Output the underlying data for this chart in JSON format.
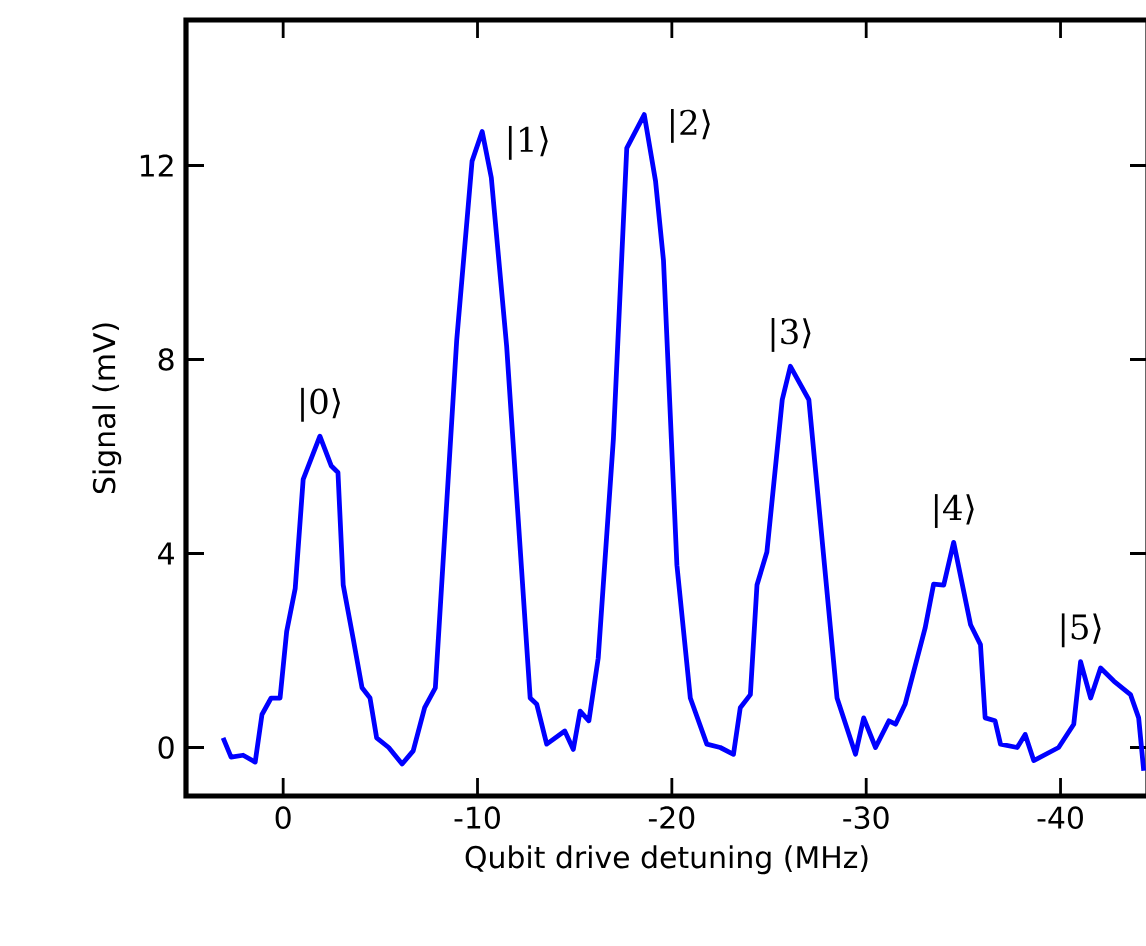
{
  "chart_data": {
    "type": "line",
    "xlabel": "Qubit drive detuning (MHz)",
    "ylabel": "Signal (mV)",
    "xlim": [
      5,
      -44.5
    ],
    "ylim": [
      -1,
      15
    ],
    "xticks": [
      0,
      -10,
      -20,
      -30,
      -40
    ],
    "yticks": [
      0,
      4,
      8,
      12
    ],
    "grid": false,
    "marker": "none",
    "line_style": "solid",
    "series": [
      {
        "color": "#0000ff",
        "x": [
          3.09,
          2.68,
          2.06,
          1.44,
          1.09,
          0.62,
          0.16,
          -0.18,
          -0.62,
          -1.03,
          -1.89,
          -2.47,
          -2.82,
          -3.09,
          -3.6,
          -4.06,
          -4.47,
          -4.81,
          -5.43,
          -6.12,
          -6.69,
          -7.28,
          -7.83,
          -8.93,
          -9.72,
          -10.24,
          -10.71,
          -11.5,
          -12.71,
          -13.05,
          -13.56,
          -14.49,
          -14.93,
          -15.28,
          -15.73,
          -16.21,
          -16.99,
          -17.68,
          -18.58,
          -19.16,
          -19.57,
          -20.26,
          -20.95,
          -21.8,
          -22.49,
          -23.17,
          -23.52,
          -24.04,
          -24.38,
          -24.89,
          -25.68,
          -26.1,
          -27.05,
          -28.5,
          -29.45,
          -29.87,
          -30.48,
          -31.17,
          -31.51,
          -32.0,
          -33.03,
          -33.47,
          -33.99,
          -34.5,
          -35.37,
          -35.88,
          -36.12,
          -36.63,
          -36.91,
          -37.77,
          -38.18,
          -38.62,
          -39.9,
          -40.68,
          -41.03,
          -41.55,
          -42.06,
          -42.74,
          -43.6,
          -44.02,
          -44.28
        ],
        "values": [
          0.2,
          -0.2,
          -0.16,
          -0.3,
          0.68,
          1.02,
          1.02,
          2.39,
          3.28,
          5.53,
          6.42,
          5.81,
          5.67,
          3.35,
          2.25,
          1.23,
          1.02,
          0.2,
          0.0,
          -0.34,
          -0.07,
          0.82,
          1.23,
          8.4,
          12.09,
          12.7,
          11.75,
          8.27,
          1.02,
          0.89,
          0.07,
          0.34,
          -0.04,
          0.75,
          0.55,
          1.84,
          6.35,
          12.36,
          13.05,
          11.68,
          10.04,
          3.76,
          1.02,
          0.07,
          0.0,
          -0.14,
          0.82,
          1.09,
          3.35,
          4.03,
          7.17,
          7.86,
          7.17,
          1.02,
          -0.14,
          0.61,
          0.0,
          0.55,
          0.48,
          0.89,
          2.46,
          3.37,
          3.35,
          4.23,
          2.53,
          2.12,
          0.61,
          0.55,
          0.07,
          0.0,
          0.27,
          -0.27,
          0.0,
          0.48,
          1.77,
          1.02,
          1.64,
          1.37,
          1.09,
          0.61,
          -0.48
        ]
      }
    ],
    "annotations": [
      {
        "text": "|0⟩",
        "x": -1.89,
        "y": 6.42
      },
      {
        "text": "|1⟩",
        "x": -10.24,
        "y": 12.7
      },
      {
        "text": "|2⟩",
        "x": -18.58,
        "y": 13.05
      },
      {
        "text": "|3⟩",
        "x": -26.1,
        "y": 7.86
      },
      {
        "text": "|4⟩",
        "x": -34.5,
        "y": 4.23
      },
      {
        "text": "|5⟩",
        "x": -41.03,
        "y": 1.77
      }
    ]
  }
}
